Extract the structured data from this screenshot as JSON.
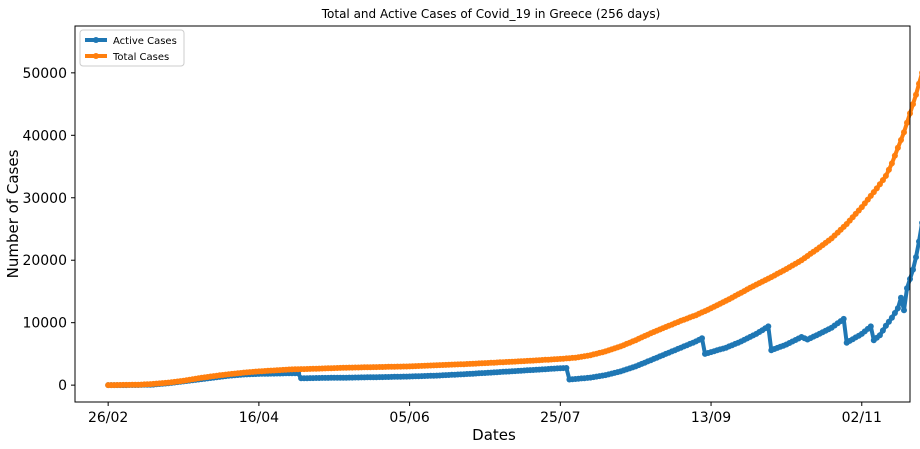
{
  "chart_data": {
    "type": "line",
    "title": "Total and Active Cases of Covid_19 in Greece (256 days)",
    "xlabel": "Dates",
    "ylabel": "Number of Cases",
    "x_ticks": [
      {
        "day": 0,
        "label": "26/02"
      },
      {
        "day": 50,
        "label": "16/04"
      },
      {
        "day": 100,
        "label": "05/06"
      },
      {
        "day": 150,
        "label": "25/07"
      },
      {
        "day": 200,
        "label": "13/09"
      },
      {
        "day": 250,
        "label": "02/11"
      }
    ],
    "y_ticks": [
      0,
      10000,
      20000,
      30000,
      40000,
      50000
    ],
    "xlim": [
      -11,
      266
    ],
    "ylim": [
      -2700,
      57500
    ],
    "grid": false,
    "legend_position": "top-left",
    "series": [
      {
        "name": "Active Cases",
        "color": "#1f77b4",
        "points": [
          [
            0,
            1
          ],
          [
            10,
            20
          ],
          [
            15,
            90
          ],
          [
            20,
            300
          ],
          [
            25,
            600
          ],
          [
            30,
            900
          ],
          [
            35,
            1200
          ],
          [
            40,
            1500
          ],
          [
            45,
            1700
          ],
          [
            50,
            1800
          ],
          [
            55,
            1850
          ],
          [
            60,
            1900
          ],
          [
            63,
            1900
          ],
          [
            64,
            1100
          ],
          [
            70,
            1150
          ],
          [
            80,
            1200
          ],
          [
            90,
            1280
          ],
          [
            100,
            1380
          ],
          [
            110,
            1550
          ],
          [
            120,
            1800
          ],
          [
            130,
            2100
          ],
          [
            140,
            2400
          ],
          [
            148,
            2650
          ],
          [
            152,
            2750
          ],
          [
            153,
            900
          ],
          [
            160,
            1200
          ],
          [
            165,
            1600
          ],
          [
            170,
            2200
          ],
          [
            175,
            3000
          ],
          [
            180,
            4000
          ],
          [
            185,
            5000
          ],
          [
            190,
            6000
          ],
          [
            195,
            7000
          ],
          [
            197,
            7500
          ],
          [
            198,
            5000
          ],
          [
            205,
            6000
          ],
          [
            210,
            7000
          ],
          [
            215,
            8200
          ],
          [
            219,
            9400
          ],
          [
            220,
            5600
          ],
          [
            225,
            6500
          ],
          [
            230,
            7700
          ],
          [
            232,
            7300
          ],
          [
            235,
            8000
          ],
          [
            240,
            9200
          ],
          [
            244,
            10600
          ],
          [
            245,
            6800
          ],
          [
            250,
            8200
          ],
          [
            253,
            9400
          ],
          [
            254,
            7200
          ],
          [
            256,
            8000
          ],
          [
            258,
            9500
          ],
          [
            260,
            10800
          ],
          [
            262,
            12300
          ],
          [
            263,
            14000
          ],
          [
            264,
            12000
          ],
          [
            265,
            15500
          ],
          [
            266,
            17000
          ],
          [
            267,
            18500
          ],
          [
            268,
            20500
          ],
          [
            269,
            23000
          ],
          [
            270,
            26000
          ],
          [
            271,
            28500
          ],
          [
            272,
            31000
          ]
        ]
      },
      {
        "name": "Total Cases",
        "color": "#ff7f0e",
        "points": [
          [
            0,
            1
          ],
          [
            10,
            60
          ],
          [
            15,
            200
          ],
          [
            20,
            400
          ],
          [
            25,
            700
          ],
          [
            30,
            1100
          ],
          [
            35,
            1450
          ],
          [
            40,
            1750
          ],
          [
            45,
            2000
          ],
          [
            50,
            2200
          ],
          [
            55,
            2350
          ],
          [
            60,
            2500
          ],
          [
            70,
            2650
          ],
          [
            80,
            2800
          ],
          [
            90,
            2900
          ],
          [
            100,
            3000
          ],
          [
            110,
            3200
          ],
          [
            120,
            3400
          ],
          [
            130,
            3650
          ],
          [
            140,
            3900
          ],
          [
            150,
            4200
          ],
          [
            155,
            4400
          ],
          [
            160,
            4800
          ],
          [
            165,
            5400
          ],
          [
            170,
            6200
          ],
          [
            175,
            7200
          ],
          [
            180,
            8300
          ],
          [
            185,
            9300
          ],
          [
            190,
            10300
          ],
          [
            195,
            11200
          ],
          [
            200,
            12300
          ],
          [
            205,
            13500
          ],
          [
            210,
            14800
          ],
          [
            215,
            16100
          ],
          [
            220,
            17300
          ],
          [
            225,
            18600
          ],
          [
            230,
            20000
          ],
          [
            235,
            21700
          ],
          [
            240,
            23500
          ],
          [
            245,
            25800
          ],
          [
            250,
            28500
          ],
          [
            255,
            31500
          ],
          [
            258,
            33500
          ],
          [
            260,
            35500
          ],
          [
            262,
            38000
          ],
          [
            264,
            40500
          ],
          [
            266,
            43500
          ],
          [
            268,
            46500
          ],
          [
            270,
            50000
          ],
          [
            271,
            52500
          ],
          [
            272,
            54500
          ]
        ]
      }
    ]
  }
}
